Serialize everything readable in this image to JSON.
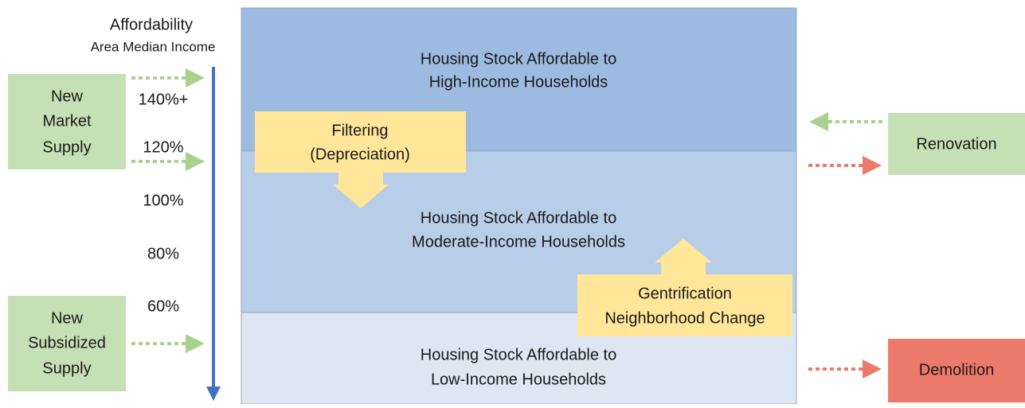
{
  "axis": {
    "title": "Affordability",
    "subtitle": "Area Median Income",
    "levels": [
      "140%+",
      "120%",
      "100%",
      "80%",
      "60%"
    ]
  },
  "sources": [
    {
      "lines": [
        "New",
        "Market",
        "Supply"
      ]
    },
    {
      "lines": [
        "New",
        "Subsidized",
        "Supply"
      ]
    }
  ],
  "bands": [
    {
      "lines": [
        "Housing Stock Affordable to",
        "High-Income Households"
      ]
    },
    {
      "lines": [
        "Housing Stock Affordable to",
        "Moderate-Income Households"
      ]
    },
    {
      "lines": [
        "Housing Stock Affordable to",
        "Low-Income Households"
      ]
    }
  ],
  "processes": [
    {
      "lines": [
        "Filtering",
        "(Depreciation)"
      ]
    },
    {
      "lines": [
        "Gentrification",
        "Neighborhood Change"
      ]
    }
  ],
  "outcomes": [
    {
      "label": "Renovation"
    },
    {
      "label": "Demolition"
    }
  ]
}
